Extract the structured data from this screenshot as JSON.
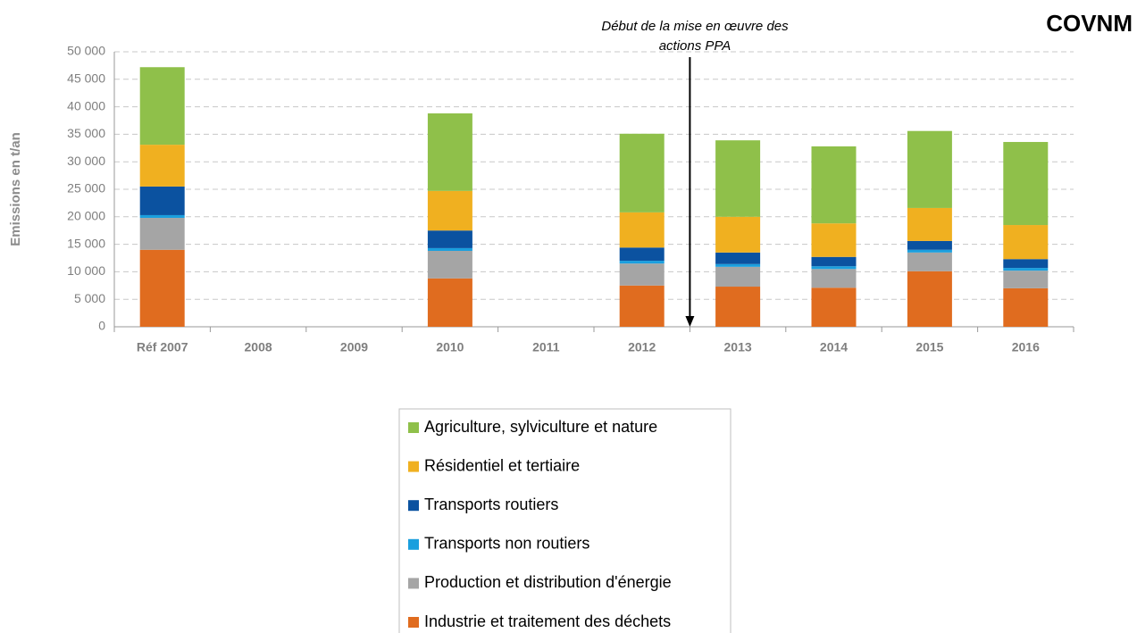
{
  "chart_data": {
    "type": "stacked-bar",
    "title": "COVNM",
    "y_label": "Emissions en t/an",
    "annotation": [
      "Début de la mise en œuvre des",
      "actions PPA"
    ],
    "categories": [
      "Réf 2007",
      "2008",
      "2009",
      "2010",
      "2011",
      "2012",
      "2013",
      "2014",
      "2015",
      "2016"
    ],
    "series": [
      {
        "name": "Industrie et traitement des déchets",
        "color": "#e06c1f",
        "values": [
          14000,
          null,
          null,
          8800,
          null,
          7500,
          7300,
          7100,
          10100,
          7000
        ]
      },
      {
        "name": "Production et distribution d'énergie",
        "color": "#a5a5a5",
        "values": [
          5800,
          null,
          null,
          5000,
          null,
          4000,
          3600,
          3400,
          3400,
          3200
        ]
      },
      {
        "name": "Transports non routiers",
        "color": "#1a9fde",
        "values": [
          500,
          null,
          null,
          500,
          null,
          500,
          500,
          500,
          500,
          500
        ]
      },
      {
        "name": "Transports routiers",
        "color": "#0b52a0",
        "values": [
          5200,
          null,
          null,
          3200,
          null,
          2400,
          2100,
          1700,
          1600,
          1600
        ]
      },
      {
        "name": "Résidentiel et tertiaire",
        "color": "#f0b020",
        "values": [
          7600,
          null,
          null,
          7200,
          null,
          6400,
          6500,
          6100,
          6000,
          6200
        ]
      },
      {
        "name": "Agriculture, sylviculture et nature",
        "color": "#8fc04a",
        "values": [
          14100,
          null,
          null,
          14100,
          null,
          14300,
          13900,
          14000,
          14000,
          15100
        ]
      }
    ],
    "ylim": [
      0,
      50000
    ],
    "yticks": [
      0,
      {
        "value": 5000,
        "label": "5 000"
      },
      {
        "value": 10000,
        "label": "10 000"
      },
      {
        "value": 15000,
        "label": "15 000"
      },
      {
        "value": 20000,
        "label": "20 000"
      },
      {
        "value": 25000,
        "label": "25 000"
      },
      {
        "value": 30000,
        "label": "30 000"
      },
      {
        "value": 35000,
        "label": "35 000"
      },
      {
        "value": 40000,
        "label": "40 000"
      },
      {
        "value": 45000,
        "label": "45 000"
      },
      {
        "value": 50000,
        "label": "50 000"
      }
    ],
    "grid": true
  }
}
